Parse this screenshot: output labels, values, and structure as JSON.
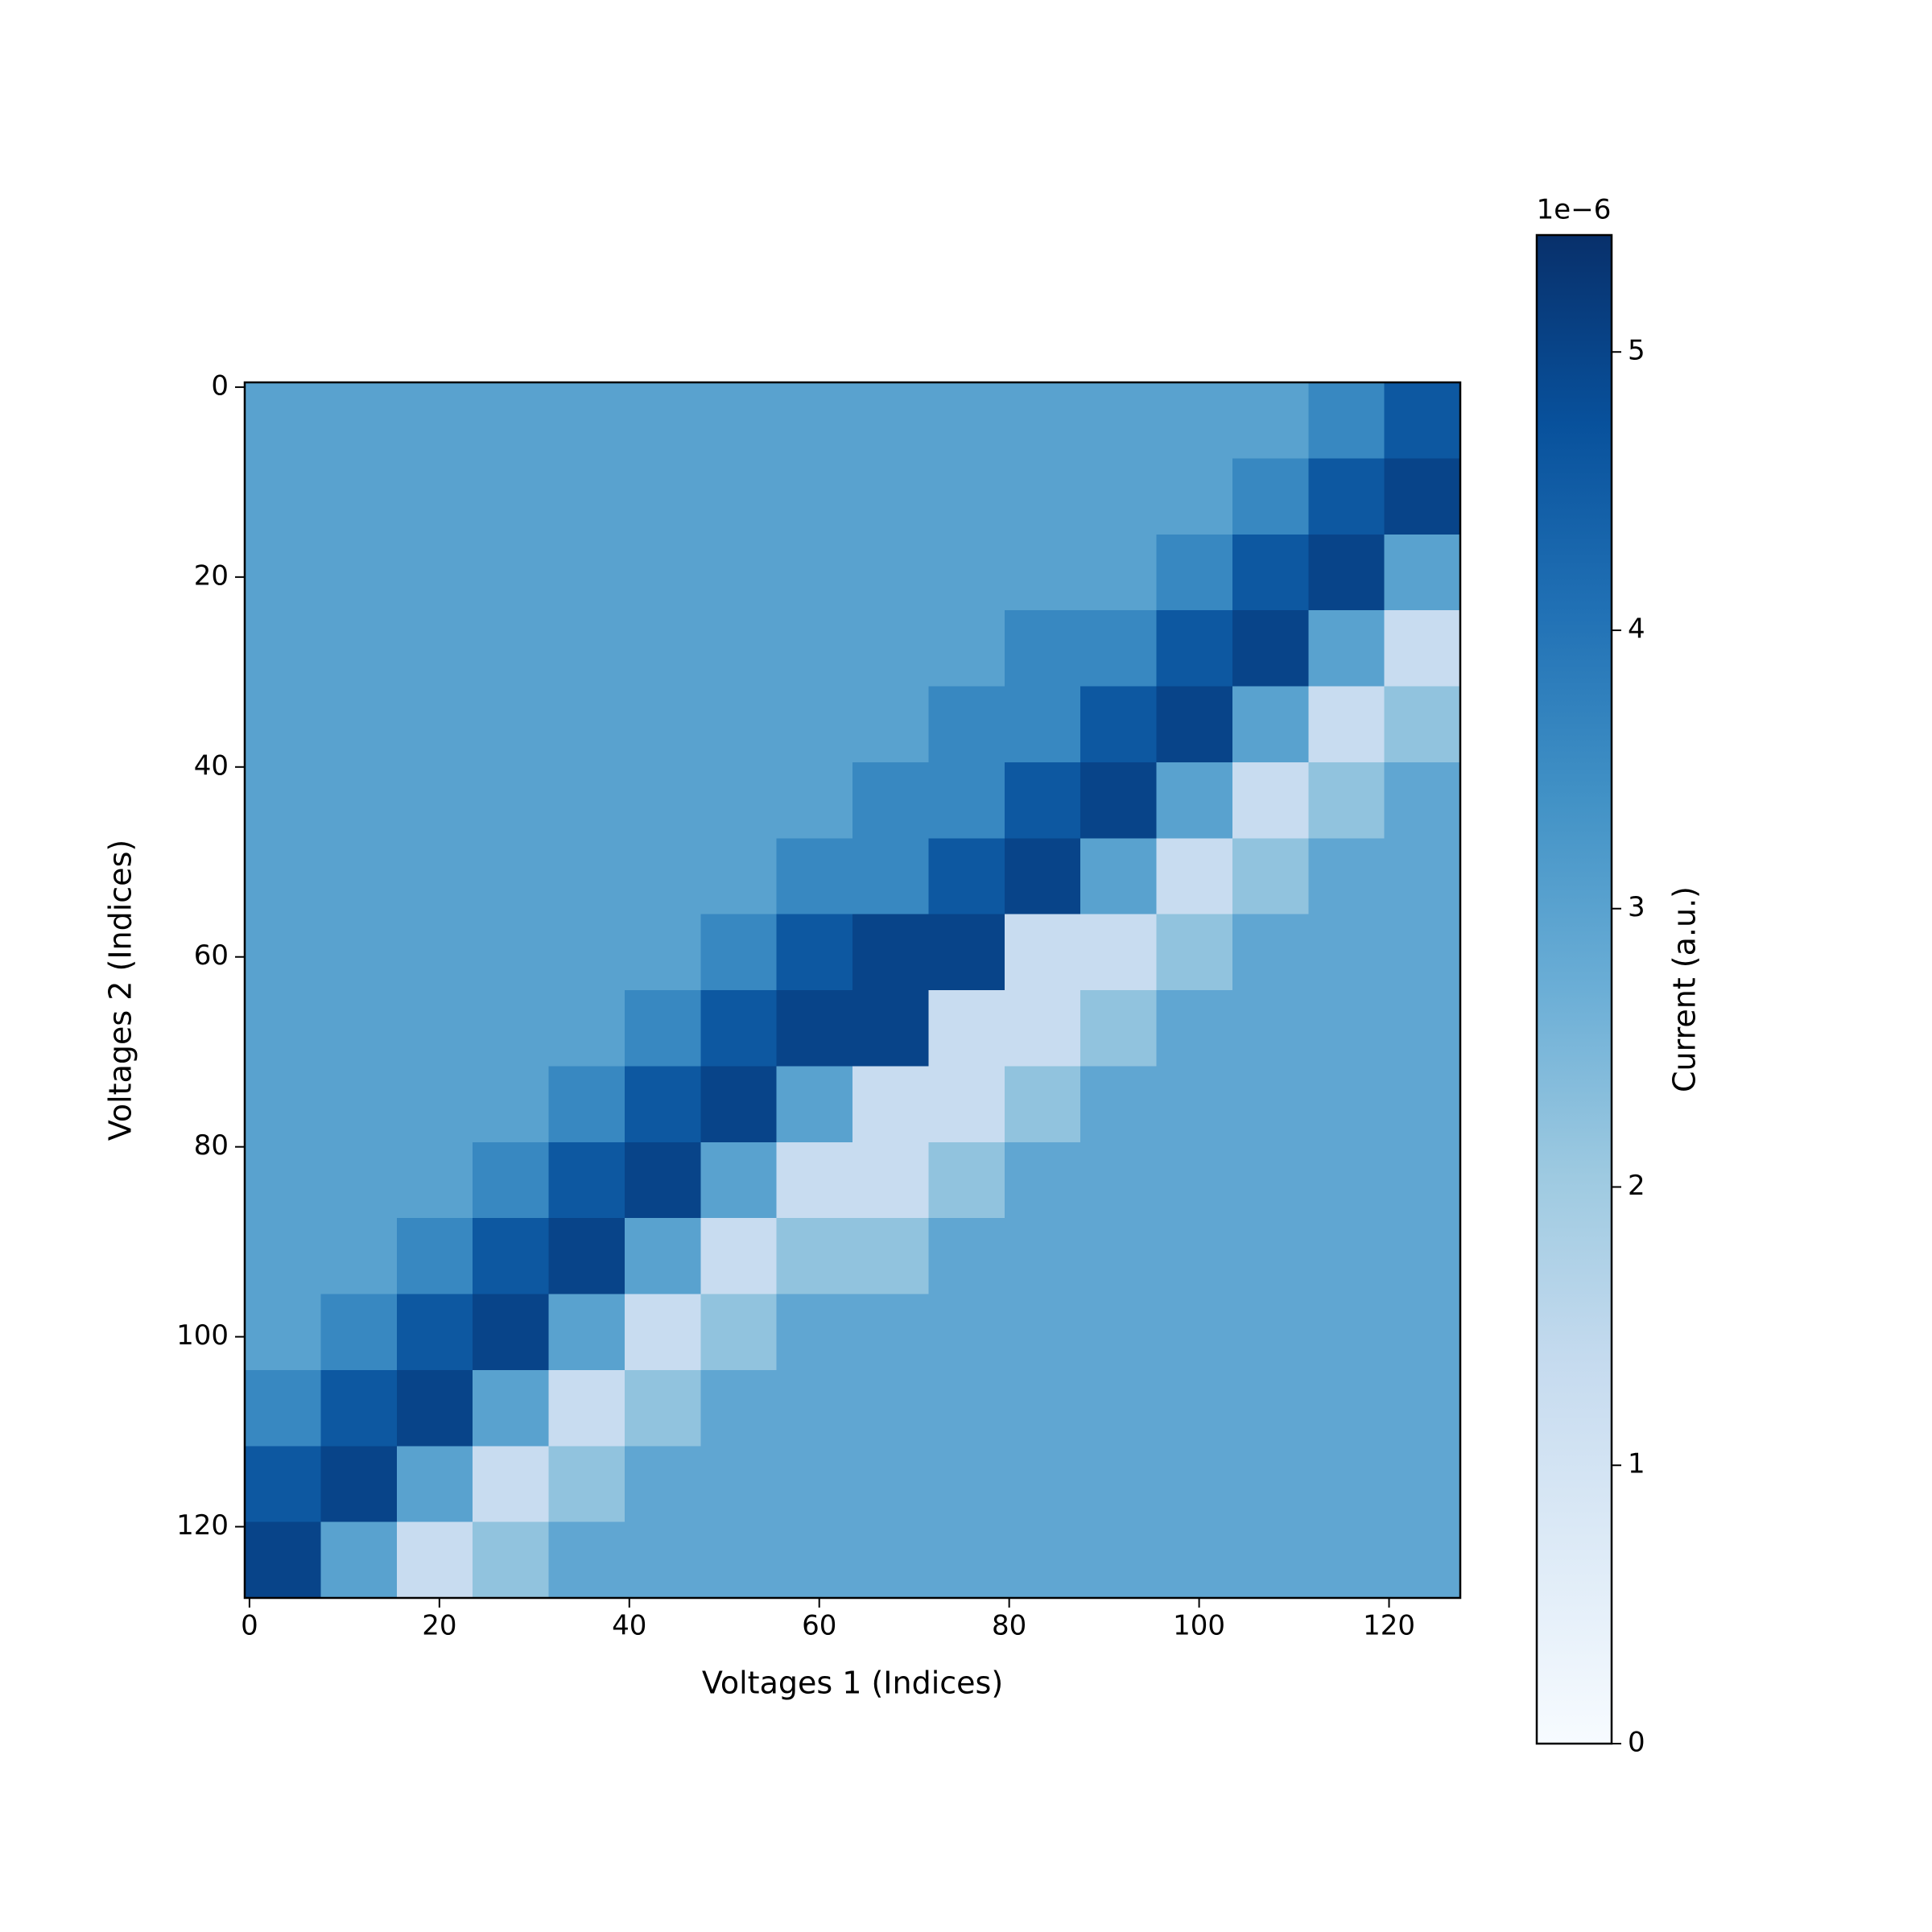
{
  "chart_data": {
    "type": "heatmap",
    "xlabel": "Voltages 1 (Indices)",
    "ylabel": "Voltages 2 (Indices)",
    "colorbar_label": "Current (a.u.)",
    "colorbar_offset": "1e−6",
    "x_edges": [
      -0.5,
      7.5,
      15.5,
      23.5,
      31.5,
      39.5,
      47.5,
      55.5,
      63.5,
      71.5,
      79.5,
      87.5,
      95.5,
      103.5,
      111.5,
      119.5,
      127.5
    ],
    "y_edges": [
      -0.5,
      7.5,
      15.5,
      23.5,
      31.5,
      39.5,
      47.5,
      55.5,
      63.5,
      71.5,
      79.5,
      87.5,
      95.5,
      103.5,
      111.5,
      119.5,
      127.5
    ],
    "values": [
      [
        3.0,
        3.0,
        3.0,
        3.0,
        3.0,
        3.0,
        3.0,
        3.0,
        3.0,
        3.0,
        3.0,
        3.0,
        3.0,
        3.0,
        3.6,
        4.6
      ],
      [
        3.0,
        3.0,
        3.0,
        3.0,
        3.0,
        3.0,
        3.0,
        3.0,
        3.0,
        3.0,
        3.0,
        3.0,
        3.0,
        3.6,
        4.6,
        5.0
      ],
      [
        3.0,
        3.0,
        3.0,
        3.0,
        3.0,
        3.0,
        3.0,
        3.0,
        3.0,
        3.0,
        3.0,
        3.0,
        3.6,
        4.6,
        5.0,
        3.0
      ],
      [
        3.0,
        3.0,
        3.0,
        3.0,
        3.0,
        3.0,
        3.0,
        3.0,
        3.0,
        3.0,
        3.6,
        3.6,
        4.6,
        5.0,
        3.0,
        1.3
      ],
      [
        3.0,
        3.0,
        3.0,
        3.0,
        3.0,
        3.0,
        3.0,
        3.0,
        3.0,
        3.6,
        3.6,
        4.6,
        5.0,
        3.0,
        1.3,
        2.2
      ],
      [
        3.0,
        3.0,
        3.0,
        3.0,
        3.0,
        3.0,
        3.0,
        3.0,
        3.6,
        3.6,
        4.6,
        5.0,
        3.0,
        1.3,
        2.2,
        2.9
      ],
      [
        3.0,
        3.0,
        3.0,
        3.0,
        3.0,
        3.0,
        3.0,
        3.6,
        3.6,
        4.6,
        5.0,
        3.0,
        1.3,
        2.2,
        2.9,
        2.9
      ],
      [
        3.0,
        3.0,
        3.0,
        3.0,
        3.0,
        3.0,
        3.6,
        4.6,
        5.0,
        5.0,
        1.3,
        1.3,
        2.2,
        2.9,
        2.9,
        2.9
      ],
      [
        3.0,
        3.0,
        3.0,
        3.0,
        3.0,
        3.6,
        4.6,
        5.0,
        5.0,
        1.3,
        1.3,
        2.2,
        2.9,
        2.9,
        2.9,
        2.9
      ],
      [
        3.0,
        3.0,
        3.0,
        3.0,
        3.6,
        4.6,
        5.0,
        3.0,
        1.3,
        1.3,
        2.2,
        2.9,
        2.9,
        2.9,
        2.9,
        2.9
      ],
      [
        3.0,
        3.0,
        3.0,
        3.6,
        4.6,
        5.0,
        3.0,
        1.3,
        1.3,
        2.2,
        2.9,
        2.9,
        2.9,
        2.9,
        2.9,
        2.9
      ],
      [
        3.0,
        3.0,
        3.6,
        4.6,
        5.0,
        3.0,
        1.3,
        2.2,
        2.2,
        2.9,
        2.9,
        2.9,
        2.9,
        2.9,
        2.9,
        2.9
      ],
      [
        3.0,
        3.6,
        4.6,
        5.0,
        3.0,
        1.3,
        2.2,
        2.9,
        2.9,
        2.9,
        2.9,
        2.9,
        2.9,
        2.9,
        2.9,
        2.9
      ],
      [
        3.6,
        4.6,
        5.0,
        3.0,
        1.3,
        2.2,
        2.9,
        2.9,
        2.9,
        2.9,
        2.9,
        2.9,
        2.9,
        2.9,
        2.9,
        2.9
      ],
      [
        4.6,
        5.0,
        3.0,
        1.3,
        2.2,
        2.9,
        2.9,
        2.9,
        2.9,
        2.9,
        2.9,
        2.9,
        2.9,
        2.9,
        2.9,
        2.9
      ],
      [
        5.0,
        3.0,
        1.3,
        2.2,
        2.9,
        2.9,
        2.9,
        2.9,
        2.9,
        2.9,
        2.9,
        2.9,
        2.9,
        2.9,
        2.9,
        2.9
      ]
    ],
    "xlim": [
      -0.5,
      127.5
    ],
    "xticks": [
      0,
      20,
      40,
      60,
      80,
      100,
      120
    ],
    "ylim": [
      127.5,
      -0.5
    ],
    "yticks": [
      0,
      20,
      40,
      60,
      80,
      100,
      120
    ],
    "clim": [
      0,
      5.42
    ],
    "cticks": [
      0,
      1,
      2,
      3,
      4,
      5
    ],
    "colormap": [
      "#f7fbff",
      "#deebf7",
      "#c6dbef",
      "#9ecae1",
      "#6baed6",
      "#4292c6",
      "#2171b5",
      "#08519c",
      "#08306b"
    ]
  }
}
